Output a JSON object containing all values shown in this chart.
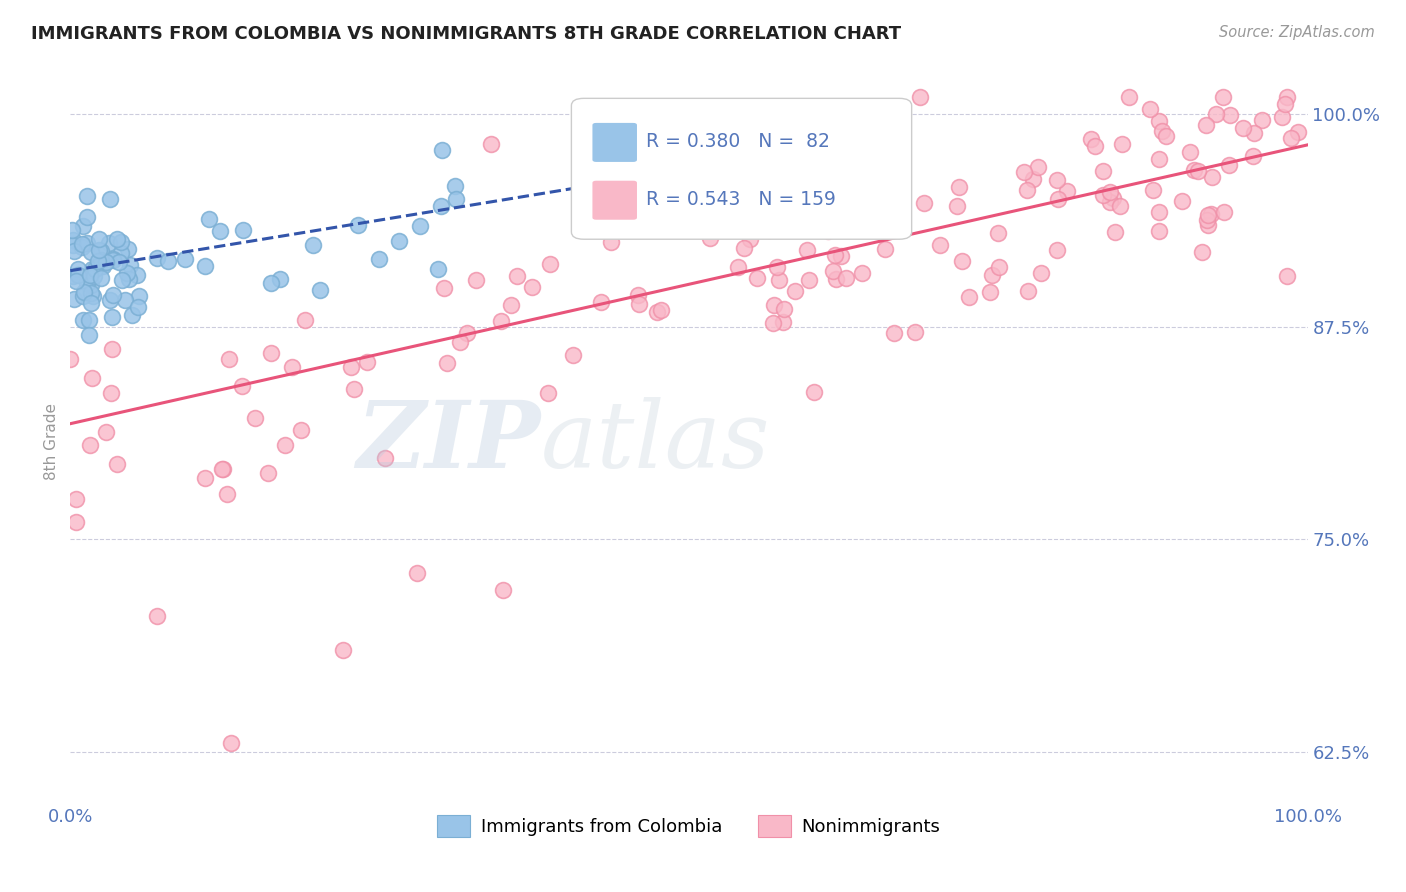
{
  "title": "IMMIGRANTS FROM COLOMBIA VS NONIMMIGRANTS 8TH GRADE CORRELATION CHART",
  "source": "Source: ZipAtlas.com",
  "ylabel": "8th Grade",
  "watermark_zip": "ZIP",
  "watermark_atlas": "atlas",
  "xmin": 0.0,
  "xmax": 1.0,
  "ymin": 0.595,
  "ymax": 1.02,
  "yticks": [
    0.625,
    0.75,
    0.875,
    1.0
  ],
  "ytick_labels": [
    "62.5%",
    "75.0%",
    "87.5%",
    "100.0%"
  ],
  "xticks": [
    0.0,
    1.0
  ],
  "xtick_labels": [
    "0.0%",
    "100.0%"
  ],
  "blue_R": 0.38,
  "blue_N": 82,
  "pink_R": 0.543,
  "pink_N": 159,
  "blue_color": "#99C4E8",
  "pink_color": "#F9B8C8",
  "blue_edge_color": "#7BAFD4",
  "pink_edge_color": "#F090A8",
  "blue_line_color": "#3355AA",
  "pink_line_color": "#E8547A",
  "legend_label_blue": "Immigrants from Colombia",
  "legend_label_pink": "Nonimmigrants",
  "title_color": "#222222",
  "tick_color": "#5577BB",
  "grid_color": "#CCCCDD",
  "background_color": "#FFFFFF",
  "blue_trend_x0": 0.0,
  "blue_trend_x1": 0.42,
  "blue_trend_y0": 0.908,
  "blue_trend_y1": 0.958,
  "pink_trend_x0": 0.0,
  "pink_trend_x1": 1.0,
  "pink_trend_y0": 0.818,
  "pink_trend_y1": 0.982
}
